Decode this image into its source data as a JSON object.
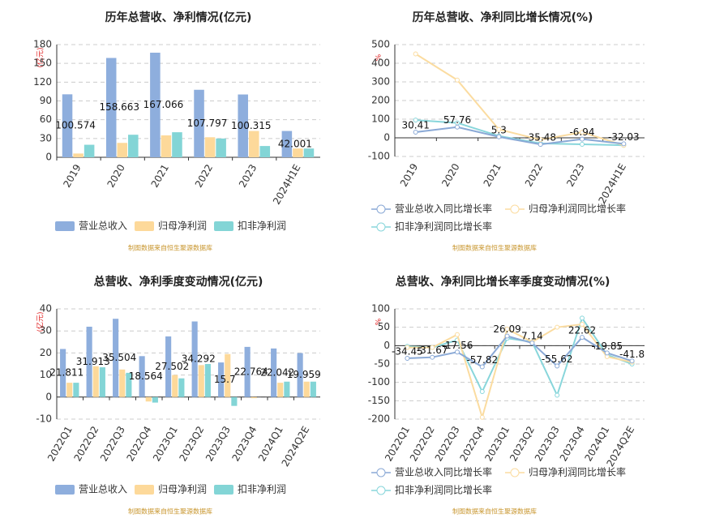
{
  "chart_data": [
    {
      "type": "bar",
      "title": "历年总营收、净利情况(亿元)",
      "unit": "(亿元)",
      "source": "制图数据来自恒生聚源数据库",
      "categories": [
        "2019",
        "2020",
        "2021",
        "2022",
        "2023",
        "2024H1E"
      ],
      "series": [
        {
          "name": "营业总收入",
          "color": "#8eaedd",
          "values": [
            100.574,
            158.663,
            167.066,
            107.797,
            100.315,
            42.001
          ]
        },
        {
          "name": "归母净利润",
          "color": "#fdd99a",
          "values": [
            6,
            23,
            35,
            32,
            42,
            14
          ]
        },
        {
          "name": "扣非净利润",
          "color": "#83d5d6",
          "values": [
            20,
            36,
            40,
            30,
            18,
            14
          ]
        }
      ],
      "ylim": [
        0,
        180
      ],
      "yticks": [
        0,
        30,
        60,
        90,
        120,
        150,
        180
      ],
      "grid": true
    },
    {
      "type": "line",
      "title": "历年总营收、净利同比增长情况(%)",
      "unit": "%",
      "source": "制图数据来自恒生聚源数据库",
      "categories": [
        "2019",
        "2020",
        "2021",
        "2022",
        "2023",
        "2024H1E"
      ],
      "series": [
        {
          "name": "营业总收入同比增长率",
          "color": "#8aa9d6",
          "values": [
            30.41,
            57.76,
            5.3,
            -35.48,
            -6.94,
            -32.03
          ]
        },
        {
          "name": "归母净利润同比增长率",
          "color": "#fbdca0",
          "values": [
            450,
            310,
            45,
            -10,
            30,
            -40
          ]
        },
        {
          "name": "扣非净利润同比增长率",
          "color": "#88d6db",
          "values": [
            95,
            80,
            10,
            -30,
            -35,
            -40
          ]
        }
      ],
      "ylim": [
        -100,
        500
      ],
      "yticks": [
        -100,
        0,
        100,
        200,
        300,
        400,
        500
      ],
      "grid": true
    },
    {
      "type": "bar",
      "title": "总营收、净利季度变动情况(亿元)",
      "unit": "(亿元)",
      "source": "制图数据来自恒生聚源数据库",
      "categories": [
        "2022Q1",
        "2022Q2",
        "2022Q3",
        "2022Q4",
        "2023Q1",
        "2023Q2",
        "2023Q3",
        "2023Q4",
        "2024Q1",
        "2024Q2E"
      ],
      "series": [
        {
          "name": "营业总收入",
          "color": "#8eaedd",
          "values": [
            21.811,
            31.913,
            35.504,
            18.564,
            27.502,
            34.292,
            15.7,
            22.764,
            22.042,
            19.959
          ]
        },
        {
          "name": "归母净利润",
          "color": "#fdd99a",
          "values": [
            6.5,
            14,
            12.5,
            -2,
            10,
            14.5,
            19.5,
            -0.5,
            6.5,
            7
          ]
        },
        {
          "name": "扣非净利润",
          "color": "#83d5d6",
          "values": [
            6.5,
            13.5,
            11,
            -2.5,
            8.5,
            15,
            -4,
            0,
            7,
            7
          ]
        }
      ],
      "ylim": [
        -10,
        40
      ],
      "yticks": [
        -10,
        0,
        10,
        20,
        30,
        40
      ],
      "grid": true
    },
    {
      "type": "line",
      "title": "总营收、净利同比增长率季度变动情况(%)",
      "unit": "%",
      "source": "制图数据来自恒生聚源数据库",
      "categories": [
        "2022Q1",
        "2022Q2",
        "2022Q3",
        "2022Q4",
        "2023Q1",
        "2023Q2",
        "2023Q3",
        "2023Q4",
        "2024Q1",
        "2024Q2E"
      ],
      "series": [
        {
          "name": "营业总收入同比增长率",
          "color": "#8aa9d6",
          "values": [
            -34.45,
            -31.67,
            -17.56,
            -57.82,
            26.09,
            7.14,
            -55.62,
            22.62,
            -19.85,
            -41.8
          ]
        },
        {
          "name": "归母净利润同比增长率",
          "color": "#fbdca0",
          "values": [
            -5,
            -5,
            30,
            -195,
            45,
            10,
            50,
            58,
            -30,
            -45
          ]
        },
        {
          "name": "扣非净利润同比增长率",
          "color": "#88d6db",
          "values": [
            -2,
            -5,
            15,
            -125,
            20,
            10,
            -135,
            75,
            -25,
            -50
          ]
        }
      ],
      "ylim": [
        -200,
        100
      ],
      "yticks": [
        -200,
        -150,
        -100,
        -50,
        0,
        50,
        100
      ],
      "grid": true
    }
  ]
}
